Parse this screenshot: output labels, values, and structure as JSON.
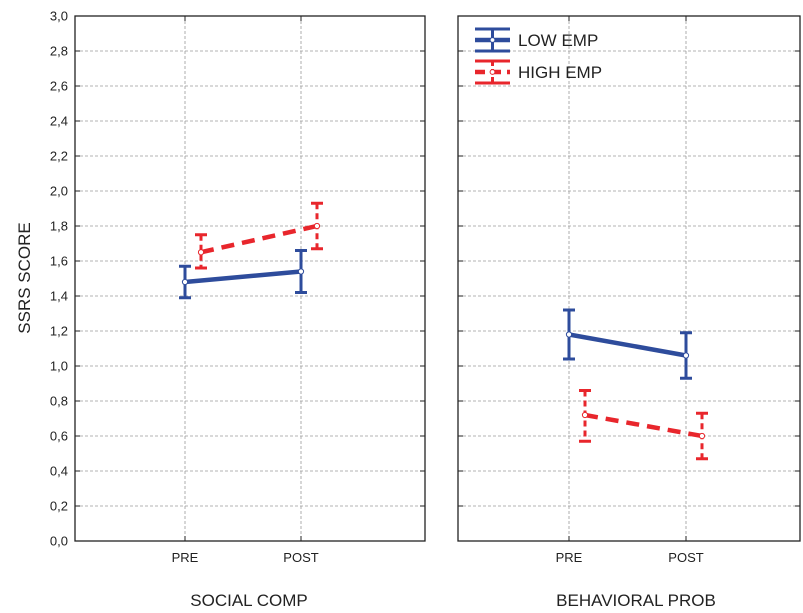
{
  "chart_data": {
    "type": "line",
    "ylabel": "SSRS SCORE",
    "ylim": [
      0.0,
      3.0
    ],
    "yticks": [
      "0,0",
      "0,2",
      "0,4",
      "0,6",
      "0,8",
      "1,0",
      "1,2",
      "1,4",
      "1,6",
      "1,8",
      "2,0",
      "2,2",
      "2,4",
      "2,6",
      "2,8",
      "3,0"
    ],
    "categories": [
      "PRE",
      "POST"
    ],
    "grid": true,
    "legend_position": "top-left of second panel",
    "series_styles": [
      {
        "name": "LOW EMP",
        "color": "#2e4c9c",
        "line": "solid"
      },
      {
        "name": "HIGH EMP",
        "color": "#e8262c",
        "line": "dashed"
      }
    ],
    "panels": [
      {
        "title": "SOCIAL COMP",
        "series": [
          {
            "name": "LOW EMP",
            "values": [
              1.48,
              1.54
            ],
            "error_low": [
              1.39,
              1.42
            ],
            "error_high": [
              1.57,
              1.66
            ]
          },
          {
            "name": "HIGH EMP",
            "values": [
              1.65,
              1.8
            ],
            "error_low": [
              1.56,
              1.67
            ],
            "error_high": [
              1.75,
              1.93
            ]
          }
        ]
      },
      {
        "title": "BEHAVIORAL PROB",
        "series": [
          {
            "name": "LOW EMP",
            "values": [
              1.18,
              1.06
            ],
            "error_low": [
              1.04,
              0.93
            ],
            "error_high": [
              1.32,
              1.19
            ]
          },
          {
            "name": "HIGH EMP",
            "values": [
              0.72,
              0.6
            ],
            "error_low": [
              0.57,
              0.47
            ],
            "error_high": [
              0.86,
              0.73
            ]
          }
        ]
      }
    ]
  }
}
